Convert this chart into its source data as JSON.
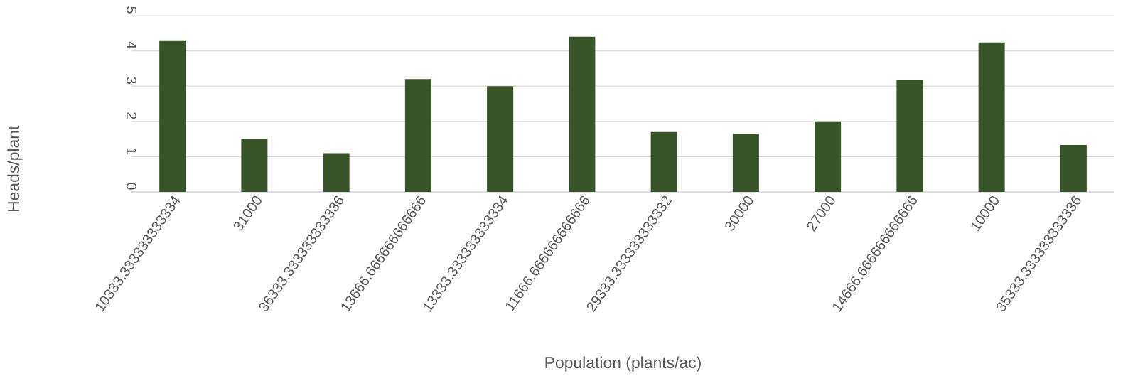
{
  "chart_data": {
    "type": "bar",
    "xlabel": "Population (plants/ac)",
    "ylabel": "Heads/plant",
    "categories": [
      "10333.333333333334",
      "31000",
      "36333.333333333336",
      "13666.666666666666",
      "13333.333333333334",
      "11666.666666666666",
      "29333.333333333332",
      "30000",
      "27000",
      "14666.666666666666",
      "10000",
      "35333.333333333336"
    ],
    "values": [
      4.3,
      1.5,
      1.1,
      3.2,
      3.0,
      4.4,
      1.7,
      1.65,
      2.0,
      3.18,
      4.24,
      1.33
    ],
    "color": "#38552a",
    "ylim": [
      0,
      5
    ],
    "yticks": [
      0,
      1,
      2,
      3,
      4,
      5
    ],
    "grid": "y"
  }
}
